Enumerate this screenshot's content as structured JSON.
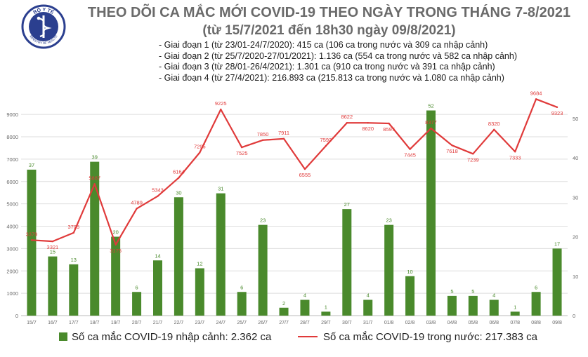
{
  "header": {
    "logo_text": "BỘ Y TẾ",
    "logo_subtext": "MINISTRY OF HEALTH",
    "title": "THEO DÕI CA MẮC MỚI COVID-19 THEO NGÀY TRONG THÁNG 7-8/2021",
    "subtitle": "(từ 15/7/2021 đến 18h30 ngày 09/8/2021)"
  },
  "phases": [
    "- Giai đoạn 1 (từ 23/01-24/7/2020): 415 ca (106 ca trong nước và 309 ca nhập cảnh)",
    "- Giai đoạn 2 (từ 25/7/2020-27/01/2021): 1.136 ca (554 ca trong nước và 582 ca nhập cảnh)",
    "- Giai đoạn 3 (từ 28/01-26/4/2021): 1.301 ca (910 ca trong nước và 391 ca nhập cảnh)",
    "- Giai đoạn 4 (từ 27/4/2021): 216.893 ca (215.813 ca trong nước và 1.080 ca nhập cảnh)"
  ],
  "legend": {
    "bar_label": "Số ca mắc COVID-19 nhập cảnh: 2.362 ca",
    "line_label": "Số ca mắc COVID-19 trong nước: 217.383 ca"
  },
  "colors": {
    "bar": "#4a8a2c",
    "line": "#e03a3a",
    "grid": "#dddddd",
    "axis_text": "#666666"
  },
  "chart_data": {
    "type": "bar",
    "categories": [
      "15/7",
      "16/7",
      "17/7",
      "18/7",
      "19/7",
      "20/7",
      "21/7",
      "22/7",
      "23/7",
      "24/7",
      "25/7",
      "26/7",
      "27/7",
      "28/7",
      "29/7",
      "30/7",
      "31/7",
      "01/8",
      "02/8",
      "03/8",
      "04/8",
      "05/8",
      "06/8",
      "07/8",
      "08/8",
      "09/8"
    ],
    "series": [
      {
        "name": "Số ca mắc COVID-19 nhập cảnh: 2.362 ca",
        "type": "bar",
        "axis": "right",
        "values": [
          37,
          15,
          13,
          39,
          20,
          6,
          14,
          30,
          12,
          31,
          6,
          23,
          2,
          4,
          1,
          27,
          4,
          23,
          10,
          52,
          5,
          5,
          4,
          1,
          6,
          17
        ]
      },
      {
        "name": "Số ca mắc COVID-19 trong nước: 217.383 ca",
        "type": "line",
        "axis": "left",
        "values": [
          3379,
          3321,
          3705,
          5887,
          3175,
          4789,
          5343,
          6164,
          7295,
          9225,
          7525,
          7850,
          7911,
          6555,
          7593,
          8622,
          8620,
          8597,
          7445,
          8377,
          7618,
          7239,
          8320,
          7333,
          9684,
          9323
        ]
      }
    ],
    "y_left": {
      "ticks": [
        0,
        1000,
        2000,
        3000,
        4000,
        5000,
        6000,
        7000,
        8000,
        9000
      ],
      "ylim": [
        0,
        9600
      ]
    },
    "y_right": {
      "ticks": [
        0,
        10,
        20,
        30,
        40,
        50
      ],
      "ylim": [
        0,
        54.4
      ]
    },
    "grid": true,
    "legend_position": "bottom"
  }
}
